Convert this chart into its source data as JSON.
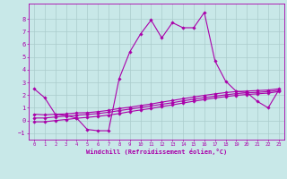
{
  "xlabel": "Windchill (Refroidissement éolien,°C)",
  "xlim": [
    -0.5,
    23.5
  ],
  "ylim": [
    -1.5,
    9.2
  ],
  "xticks": [
    0,
    1,
    2,
    3,
    4,
    5,
    6,
    7,
    8,
    9,
    10,
    11,
    12,
    13,
    14,
    15,
    16,
    17,
    18,
    19,
    20,
    21,
    22,
    23
  ],
  "yticks": [
    -1,
    0,
    1,
    2,
    3,
    4,
    5,
    6,
    7,
    8
  ],
  "bg_color": "#c8e8e8",
  "grid_color": "#aacccc",
  "line_color": "#aa00aa",
  "line_width": 0.8,
  "marker": "D",
  "marker_size": 1.8,
  "series": [
    {
      "x": [
        0,
        1,
        2,
        3,
        4,
        5,
        6,
        7,
        8,
        9,
        10,
        11,
        12,
        13,
        14,
        15,
        16,
        17,
        18,
        19,
        20,
        21,
        22,
        23
      ],
      "y": [
        2.5,
        1.8,
        0.5,
        0.4,
        0.2,
        -0.7,
        -0.8,
        -0.8,
        3.3,
        5.4,
        6.8,
        7.9,
        6.5,
        7.7,
        7.3,
        7.3,
        8.5,
        4.7,
        3.1,
        2.3,
        2.2,
        1.5,
        1.0,
        2.4
      ]
    },
    {
      "x": [
        0,
        1,
        2,
        3,
        4,
        5,
        6,
        7,
        8,
        9,
        10,
        11,
        12,
        13,
        14,
        15,
        16,
        17,
        18,
        19,
        20,
        21,
        22,
        23
      ],
      "y": [
        0.5,
        0.45,
        0.5,
        0.52,
        0.6,
        0.62,
        0.7,
        0.8,
        0.95,
        1.05,
        1.18,
        1.3,
        1.45,
        1.58,
        1.72,
        1.85,
        1.98,
        2.1,
        2.2,
        2.28,
        2.32,
        2.36,
        2.4,
        2.5
      ]
    },
    {
      "x": [
        0,
        1,
        2,
        3,
        4,
        5,
        6,
        7,
        8,
        9,
        10,
        11,
        12,
        13,
        14,
        15,
        16,
        17,
        18,
        19,
        20,
        21,
        22,
        23
      ],
      "y": [
        0.2,
        0.2,
        0.28,
        0.35,
        0.42,
        0.48,
        0.55,
        0.65,
        0.78,
        0.9,
        1.02,
        1.15,
        1.28,
        1.4,
        1.55,
        1.68,
        1.8,
        1.92,
        2.02,
        2.12,
        2.18,
        2.22,
        2.28,
        2.38
      ]
    },
    {
      "x": [
        0,
        1,
        2,
        3,
        4,
        5,
        6,
        7,
        8,
        9,
        10,
        11,
        12,
        13,
        14,
        15,
        16,
        17,
        18,
        19,
        20,
        21,
        22,
        23
      ],
      "y": [
        -0.1,
        -0.1,
        0.0,
        0.08,
        0.18,
        0.25,
        0.33,
        0.43,
        0.55,
        0.7,
        0.83,
        0.95,
        1.1,
        1.23,
        1.38,
        1.52,
        1.65,
        1.78,
        1.88,
        1.98,
        2.05,
        2.1,
        2.16,
        2.28
      ]
    }
  ]
}
